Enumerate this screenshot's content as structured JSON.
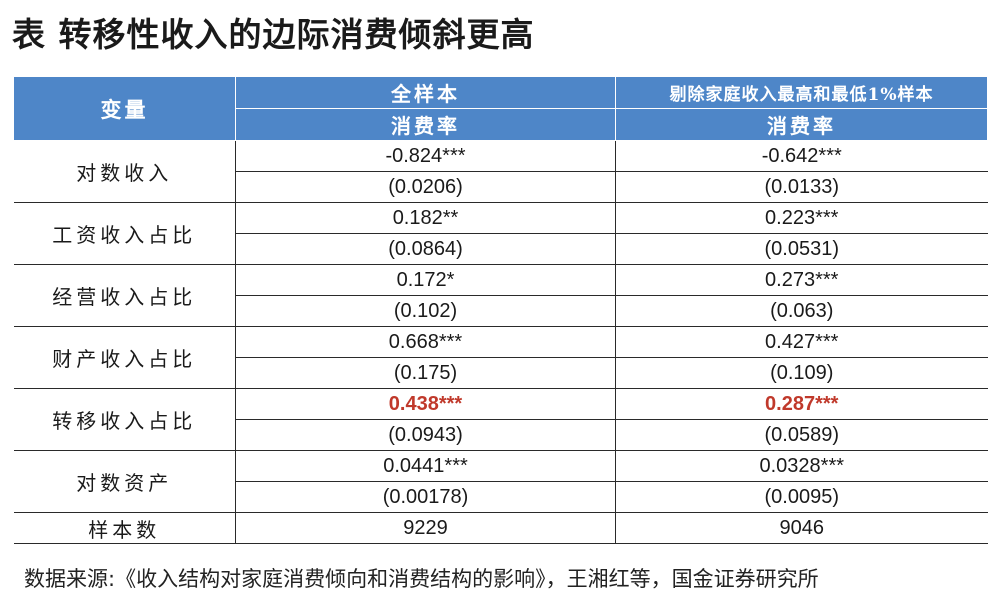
{
  "title": "表  转移性收入的边际消费倾斜更高",
  "table": {
    "header": {
      "variable": "变量",
      "full_sample": "全样本",
      "trimmed_sample": "剔除家庭收入最高和最低1%样本",
      "dependent_full": "消费率",
      "dependent_trimmed": "消费率"
    },
    "rows": [
      {
        "label": "对数收入",
        "full_coef": "-0.824***",
        "full_se": "(0.0206)",
        "trim_coef": "-0.642***",
        "trim_se": "(0.0133)"
      },
      {
        "label": "工资收入占比",
        "full_coef": "0.182**",
        "full_se": "(0.0864)",
        "trim_coef": "0.223***",
        "trim_se": "(0.0531)"
      },
      {
        "label": "经营收入占比",
        "full_coef": "0.172*",
        "full_se": "(0.102)",
        "trim_coef": "0.273***",
        "trim_se": "(0.063)"
      },
      {
        "label": "财产收入占比",
        "full_coef": "0.668***",
        "full_se": "(0.175)",
        "trim_coef": "0.427***",
        "trim_se": "(0.109)"
      },
      {
        "label": "转移收入占比",
        "full_coef": "0.438***",
        "full_se": "(0.0943)",
        "trim_coef": "0.287***",
        "trim_se": "(0.0589)"
      },
      {
        "label": "对数资产",
        "full_coef": "0.0441***",
        "full_se": "(0.00178)",
        "trim_coef": "0.0328***",
        "trim_se": "(0.0095)"
      }
    ],
    "sample_size": {
      "label": "样本数",
      "full": "9229",
      "trimmed": "9046"
    }
  },
  "source": "数据来源:《收入结构对家庭消费倾向和消费结构的影响》，王湘红等，国金证券研究所",
  "colors": {
    "header_bg": "#4e86c8",
    "header_text": "#ffffff",
    "highlight": "#c0392b"
  }
}
